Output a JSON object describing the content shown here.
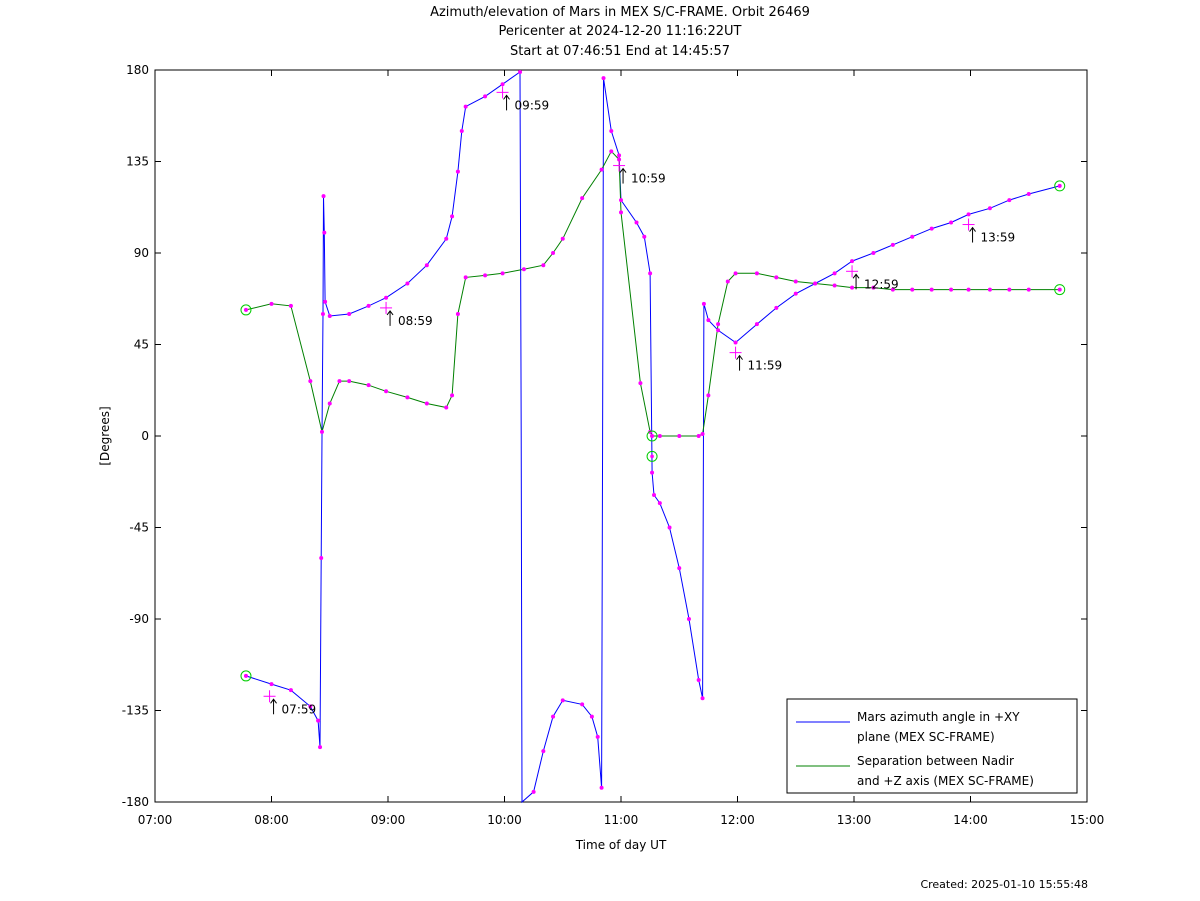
{
  "header": {
    "title_line1": "Azimuth/elevation of Mars in MEX S/C-FRAME.  Orbit 26469",
    "title_line2": "Pericenter at 2024-12-20 11:16:22UT",
    "title_line3": "Start at 07:46:51 End at 14:45:57"
  },
  "footer": {
    "created": "Created: 2025-01-10 15:55:48"
  },
  "chart_data": {
    "type": "line",
    "xlabel": "Time of day UT",
    "ylabel": "[Degrees]",
    "xlim": [
      "07:00",
      "15:00"
    ],
    "ylim": [
      -180,
      180
    ],
    "xticks": [
      "07:00",
      "08:00",
      "09:00",
      "10:00",
      "11:00",
      "12:00",
      "13:00",
      "14:00",
      "15:00"
    ],
    "yticks": [
      180,
      135,
      90,
      45,
      0,
      -45,
      -90,
      -135,
      -180
    ],
    "grid": false,
    "legend_position": "bottom-right",
    "colors": {
      "azimuth": "#0000ff",
      "separation": "#008000",
      "markers": "#ff00ff",
      "endpoints": "#00cc00"
    },
    "series": [
      {
        "name": "Mars azimuth angle in +XY plane (MEX SC-FRAME)",
        "legend_lines": [
          "Mars azimuth angle in +XY",
          "plane (MEX SC-FRAME)"
        ],
        "color": "#0000ff",
        "points": [
          [
            "07:46:51",
            -118
          ],
          [
            "08:00",
            -122
          ],
          [
            "08:10",
            -125
          ],
          [
            "08:20",
            -133
          ],
          [
            "08:24",
            -140
          ],
          [
            "08:25",
            -153
          ],
          [
            "08:25.6",
            -60
          ],
          [
            "08:26",
            0
          ],
          [
            "08:26.5",
            60
          ],
          [
            "08:26.8",
            118
          ],
          [
            "08:27.2",
            100
          ],
          [
            "08:27.6",
            66
          ],
          [
            "08:30",
            59
          ],
          [
            "08:40",
            60
          ],
          [
            "08:50",
            64
          ],
          [
            "08:59",
            68
          ],
          [
            "09:10",
            75
          ],
          [
            "09:20",
            84
          ],
          [
            "09:30",
            97
          ],
          [
            "09:33",
            108
          ],
          [
            "09:36",
            130
          ],
          [
            "09:38",
            150
          ],
          [
            "09:40",
            162
          ],
          [
            "09:50",
            167
          ],
          [
            "09:59",
            173
          ],
          [
            "10:08",
            179
          ],
          [
            "10:08.6",
            0
          ],
          [
            "10:09",
            -180
          ],
          [
            "10:15",
            -175
          ],
          [
            "10:20",
            -155
          ],
          [
            "10:25",
            -138
          ],
          [
            "10:30",
            -130
          ],
          [
            "10:40",
            -132
          ],
          [
            "10:45",
            -138
          ],
          [
            "10:48",
            -148
          ],
          [
            "10:50",
            -173
          ],
          [
            "10:50.5",
            0
          ],
          [
            "10:51",
            176
          ],
          [
            "10:55",
            150
          ],
          [
            "10:59",
            138
          ],
          [
            "11:00",
            116
          ],
          [
            "11:08",
            105
          ],
          [
            "11:12",
            98
          ],
          [
            "11:15",
            80
          ],
          [
            "11:16",
            -18
          ],
          [
            "11:17",
            -29
          ],
          [
            "11:20",
            -33
          ],
          [
            "11:25",
            -45
          ],
          [
            "11:30",
            -65
          ],
          [
            "11:35",
            -90
          ],
          [
            "11:40",
            -120
          ],
          [
            "11:42",
            -129
          ],
          [
            "11:42.7",
            65
          ],
          [
            "11:45",
            57
          ],
          [
            "11:50",
            52
          ],
          [
            "11:59",
            46
          ],
          [
            "12:10",
            55
          ],
          [
            "12:20",
            63
          ],
          [
            "12:30",
            70
          ],
          [
            "12:40",
            75
          ],
          [
            "12:50",
            80
          ],
          [
            "12:59",
            86
          ],
          [
            "13:10",
            90
          ],
          [
            "13:20",
            94
          ],
          [
            "13:30",
            98
          ],
          [
            "13:40",
            102
          ],
          [
            "13:50",
            105
          ],
          [
            "13:59",
            109
          ],
          [
            "14:10",
            112
          ],
          [
            "14:20",
            116
          ],
          [
            "14:30",
            119
          ],
          [
            "14:45:57",
            123
          ]
        ]
      },
      {
        "name": "Separation between Nadir and +Z axis (MEX SC-FRAME)",
        "legend_lines": [
          "Separation between Nadir",
          "and +Z axis (MEX SC-FRAME)"
        ],
        "color": "#008000",
        "points": [
          [
            "07:46:51",
            62
          ],
          [
            "08:00",
            65
          ],
          [
            "08:10",
            64
          ],
          [
            "08:20",
            27
          ],
          [
            "08:26",
            2
          ],
          [
            "08:30",
            16
          ],
          [
            "08:35",
            27
          ],
          [
            "08:40",
            27
          ],
          [
            "08:50",
            25
          ],
          [
            "08:59",
            22
          ],
          [
            "09:10",
            19
          ],
          [
            "09:20",
            16
          ],
          [
            "09:30",
            14
          ],
          [
            "09:33",
            20
          ],
          [
            "09:36",
            60
          ],
          [
            "09:40",
            78
          ],
          [
            "09:50",
            79
          ],
          [
            "09:59",
            80
          ],
          [
            "10:10",
            82
          ],
          [
            "10:20",
            84
          ],
          [
            "10:25",
            90
          ],
          [
            "10:30",
            97
          ],
          [
            "10:40",
            117
          ],
          [
            "10:50",
            131
          ],
          [
            "10:55",
            140
          ],
          [
            "10:59",
            136
          ],
          [
            "11:00",
            110
          ],
          [
            "11:10",
            26
          ],
          [
            "11:15",
            2
          ],
          [
            "11:16",
            0
          ],
          [
            "11:20",
            0
          ],
          [
            "11:30",
            0
          ],
          [
            "11:40",
            0
          ],
          [
            "11:42",
            1
          ],
          [
            "11:45",
            20
          ],
          [
            "11:50",
            55
          ],
          [
            "11:55",
            76
          ],
          [
            "11:59",
            80
          ],
          [
            "12:10",
            80
          ],
          [
            "12:20",
            78
          ],
          [
            "12:30",
            76
          ],
          [
            "12:40",
            75
          ],
          [
            "12:50",
            74
          ],
          [
            "12:59",
            73
          ],
          [
            "13:10",
            73
          ],
          [
            "13:20",
            72
          ],
          [
            "13:30",
            72
          ],
          [
            "13:40",
            72
          ],
          [
            "13:50",
            72
          ],
          [
            "13:59",
            72
          ],
          [
            "14:10",
            72
          ],
          [
            "14:20",
            72
          ],
          [
            "14:30",
            72
          ],
          [
            "14:45:57",
            72
          ]
        ]
      }
    ],
    "annotations": [
      {
        "label": "07:59",
        "time": "07:59",
        "y": -128
      },
      {
        "label": "08:59",
        "time": "08:59",
        "y": 63
      },
      {
        "label": "09:59",
        "time": "09:59",
        "y": 169
      },
      {
        "label": "10:59",
        "time": "10:59",
        "y": 133
      },
      {
        "label": "11:59",
        "time": "11:59",
        "y": 41
      },
      {
        "label": "12:59",
        "time": "12:59",
        "y": 81
      },
      {
        "label": "13:59",
        "time": "13:59",
        "y": 104
      }
    ],
    "endpoint_markers": [
      {
        "time": "07:46:51",
        "y": 62
      },
      {
        "time": "07:46:51",
        "y": -118
      },
      {
        "time": "11:16",
        "y": 0
      },
      {
        "time": "11:16",
        "y": -10
      },
      {
        "time": "14:45:57",
        "y": 123
      },
      {
        "time": "14:45:57",
        "y": 72
      }
    ]
  }
}
